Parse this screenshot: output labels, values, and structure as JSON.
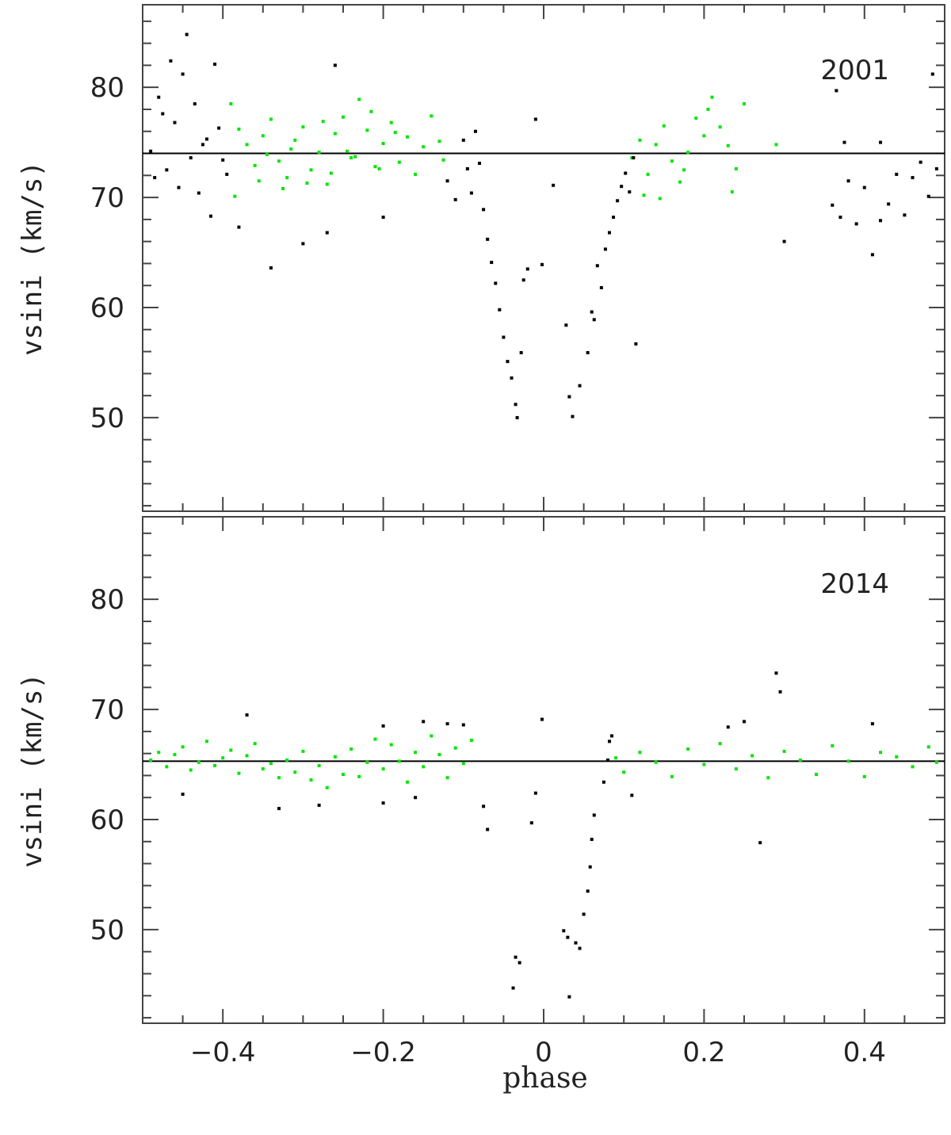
{
  "chart_data": [
    {
      "type": "scatter",
      "panel_label": "2001",
      "ylabel": "vsini  (km/s)",
      "xlim": [
        -0.5,
        0.5
      ],
      "ylim": [
        41.5,
        87.5
      ],
      "yticks": [
        50,
        60,
        70,
        80
      ],
      "reference_line": 74.0,
      "series": [
        {
          "color": "#00e600",
          "points": [
            [
              -0.39,
              78.5
            ],
            [
              -0.38,
              76.2
            ],
            [
              -0.37,
              74.8
            ],
            [
              -0.36,
              72.9
            ],
            [
              -0.35,
              75.6
            ],
            [
              -0.34,
              77.1
            ],
            [
              -0.33,
              73.3
            ],
            [
              -0.32,
              71.8
            ],
            [
              -0.31,
              75.2
            ],
            [
              -0.3,
              76.4
            ],
            [
              -0.29,
              72.5
            ],
            [
              -0.28,
              74.1
            ],
            [
              -0.27,
              71.2
            ],
            [
              -0.26,
              75.8
            ],
            [
              -0.25,
              77.3
            ],
            [
              -0.24,
              73.6
            ],
            [
              -0.23,
              78.9
            ],
            [
              -0.22,
              76.1
            ],
            [
              -0.21,
              72.8
            ],
            [
              -0.2,
              74.9
            ],
            [
              -0.19,
              76.8
            ],
            [
              -0.18,
              73.2
            ],
            [
              -0.17,
              75.5
            ],
            [
              -0.16,
              72.1
            ],
            [
              -0.15,
              74.6
            ],
            [
              -0.14,
              77.4
            ],
            [
              -0.13,
              75.1
            ],
            [
              -0.125,
              73.4
            ],
            [
              -0.385,
              70.1
            ],
            [
              -0.355,
              71.5
            ],
            [
              -0.325,
              70.8
            ],
            [
              -0.295,
              71.3
            ],
            [
              -0.265,
              72.2
            ],
            [
              -0.235,
              73.7
            ],
            [
              -0.205,
              72.6
            ],
            [
              -0.345,
              73.9
            ],
            [
              -0.315,
              74.4
            ],
            [
              -0.275,
              76.9
            ],
            [
              -0.245,
              74.2
            ],
            [
              -0.215,
              77.8
            ],
            [
              -0.185,
              75.9
            ],
            [
              0.11,
              73.6
            ],
            [
              0.12,
              75.2
            ],
            [
              0.13,
              72.1
            ],
            [
              0.14,
              74.8
            ],
            [
              0.15,
              76.5
            ],
            [
              0.16,
              73.3
            ],
            [
              0.17,
              71.4
            ],
            [
              0.18,
              74.1
            ],
            [
              0.19,
              77.2
            ],
            [
              0.2,
              75.6
            ],
            [
              0.21,
              79.1
            ],
            [
              0.22,
              76.4
            ],
            [
              0.23,
              74.7
            ],
            [
              0.24,
              72.6
            ],
            [
              0.25,
              78.5
            ],
            [
              0.125,
              70.2
            ],
            [
              0.145,
              69.9
            ],
            [
              0.175,
              72.5
            ],
            [
              0.205,
              78.0
            ],
            [
              0.235,
              70.5
            ],
            [
              0.29,
              74.8
            ]
          ]
        },
        {
          "color": "#000000",
          "points": [
            [
              -0.49,
              74.2
            ],
            [
              -0.48,
              79.1
            ],
            [
              -0.47,
              72.5
            ],
            [
              -0.46,
              76.8
            ],
            [
              -0.45,
              81.2
            ],
            [
              -0.44,
              73.6
            ],
            [
              -0.43,
              70.4
            ],
            [
              -0.42,
              75.3
            ],
            [
              -0.41,
              82.1
            ],
            [
              -0.4,
              73.4
            ],
            [
              -0.485,
              71.8
            ],
            [
              -0.475,
              77.6
            ],
            [
              -0.465,
              82.4
            ],
            [
              -0.455,
              70.9
            ],
            [
              -0.445,
              84.8
            ],
            [
              -0.435,
              78.5
            ],
            [
              -0.425,
              74.8
            ],
            [
              -0.415,
              68.3
            ],
            [
              -0.405,
              76.3
            ],
            [
              -0.395,
              72.1
            ],
            [
              -0.38,
              67.3
            ],
            [
              -0.34,
              63.6
            ],
            [
              -0.3,
              65.8
            ],
            [
              -0.27,
              66.8
            ],
            [
              -0.26,
              82.0
            ],
            [
              -0.2,
              68.2
            ],
            [
              -0.12,
              71.5
            ],
            [
              -0.11,
              69.8
            ],
            [
              -0.1,
              75.2
            ],
            [
              -0.095,
              72.6
            ],
            [
              -0.09,
              70.4
            ],
            [
              -0.085,
              76.0
            ],
            [
              -0.08,
              73.1
            ],
            [
              -0.075,
              68.9
            ],
            [
              -0.07,
              66.2
            ],
            [
              -0.065,
              64.1
            ],
            [
              -0.06,
              62.2
            ],
            [
              -0.055,
              59.8
            ],
            [
              -0.05,
              57.3
            ],
            [
              -0.045,
              55.1
            ],
            [
              -0.04,
              53.6
            ],
            [
              -0.035,
              51.2
            ],
            [
              -0.033,
              50.0
            ],
            [
              -0.028,
              55.9
            ],
            [
              -0.025,
              62.5
            ],
            [
              -0.02,
              63.5
            ],
            [
              -0.01,
              77.1
            ],
            [
              -0.002,
              63.9
            ],
            [
              0.012,
              71.1
            ],
            [
              0.028,
              58.4
            ],
            [
              0.032,
              51.9
            ],
            [
              0.036,
              50.1
            ],
            [
              0.045,
              52.9
            ],
            [
              0.055,
              55.9
            ],
            [
              0.06,
              59.6
            ],
            [
              0.063,
              58.9
            ],
            [
              0.067,
              63.8
            ],
            [
              0.072,
              61.8
            ],
            [
              0.077,
              65.3
            ],
            [
              0.082,
              66.8
            ],
            [
              0.087,
              68.2
            ],
            [
              0.092,
              69.7
            ],
            [
              0.097,
              71.0
            ],
            [
              0.102,
              72.2
            ],
            [
              0.107,
              70.5
            ],
            [
              0.112,
              73.6
            ],
            [
              0.115,
              56.7
            ],
            [
              0.3,
              66.0
            ],
            [
              0.36,
              69.3
            ],
            [
              0.37,
              68.2
            ],
            [
              0.38,
              71.5
            ],
            [
              0.39,
              67.6
            ],
            [
              0.4,
              70.9
            ],
            [
              0.41,
              64.8
            ],
            [
              0.42,
              67.9
            ],
            [
              0.43,
              69.4
            ],
            [
              0.44,
              72.1
            ],
            [
              0.45,
              68.4
            ],
            [
              0.46,
              71.8
            ],
            [
              0.47,
              73.2
            ],
            [
              0.48,
              70.1
            ],
            [
              0.49,
              72.6
            ],
            [
              0.365,
              79.7
            ],
            [
              0.375,
              75.0
            ],
            [
              0.42,
              75.0
            ],
            [
              0.485,
              81.2
            ]
          ]
        }
      ]
    },
    {
      "type": "scatter",
      "panel_label": "2014",
      "ylabel": "vsini  (km/s)",
      "xlabel": "phase",
      "xlim": [
        -0.5,
        0.5
      ],
      "xticks": [
        -0.4,
        -0.2,
        0,
        0.2,
        0.4
      ],
      "xtick_labels": [
        "−0.4",
        "−0.2",
        "0",
        "0.2",
        "0.4"
      ],
      "ylim": [
        41.5,
        87.5
      ],
      "yticks": [
        50,
        60,
        70,
        80
      ],
      "reference_line": 65.3,
      "series": [
        {
          "color": "#00e600",
          "points": [
            [
              -0.49,
              65.4
            ],
            [
              -0.48,
              66.1
            ],
            [
              -0.47,
              64.8
            ],
            [
              -0.46,
              65.9
            ],
            [
              -0.45,
              66.6
            ],
            [
              -0.44,
              64.5
            ],
            [
              -0.43,
              65.2
            ],
            [
              -0.42,
              67.1
            ],
            [
              -0.41,
              64.9
            ],
            [
              -0.4,
              65.6
            ],
            [
              -0.39,
              66.3
            ],
            [
              -0.38,
              64.2
            ],
            [
              -0.37,
              65.8
            ],
            [
              -0.36,
              66.9
            ],
            [
              -0.35,
              64.6
            ],
            [
              -0.34,
              65.1
            ],
            [
              -0.33,
              63.8
            ],
            [
              -0.32,
              65.4
            ],
            [
              -0.31,
              64.3
            ],
            [
              -0.3,
              66.2
            ],
            [
              -0.29,
              63.6
            ],
            [
              -0.28,
              64.9
            ],
            [
              -0.27,
              62.9
            ],
            [
              -0.26,
              65.7
            ],
            [
              -0.25,
              64.1
            ],
            [
              -0.24,
              66.4
            ],
            [
              -0.23,
              63.9
            ],
            [
              -0.22,
              65.2
            ],
            [
              -0.21,
              67.3
            ],
            [
              -0.2,
              64.6
            ],
            [
              -0.19,
              66.8
            ],
            [
              -0.18,
              65.3
            ],
            [
              -0.17,
              63.4
            ],
            [
              -0.16,
              66.1
            ],
            [
              -0.15,
              64.8
            ],
            [
              -0.14,
              67.6
            ],
            [
              -0.13,
              65.9
            ],
            [
              -0.12,
              63.8
            ],
            [
              -0.11,
              66.5
            ],
            [
              -0.1,
              65.1
            ],
            [
              -0.09,
              67.2
            ],
            [
              0.09,
              65.6
            ],
            [
              0.1,
              64.3
            ],
            [
              0.12,
              66.1
            ],
            [
              0.14,
              65.2
            ],
            [
              0.16,
              63.9
            ],
            [
              0.18,
              66.4
            ],
            [
              0.2,
              65.0
            ],
            [
              0.22,
              66.9
            ],
            [
              0.24,
              64.6
            ],
            [
              0.26,
              65.8
            ],
            [
              0.28,
              63.8
            ],
            [
              0.3,
              66.2
            ],
            [
              0.32,
              65.4
            ],
            [
              0.34,
              64.1
            ],
            [
              0.36,
              66.7
            ],
            [
              0.38,
              65.3
            ],
            [
              0.4,
              63.9
            ],
            [
              0.42,
              66.1
            ],
            [
              0.44,
              65.7
            ],
            [
              0.46,
              64.8
            ],
            [
              0.48,
              66.6
            ],
            [
              0.49,
              65.2
            ]
          ]
        },
        {
          "color": "#000000",
          "points": [
            [
              -0.45,
              62.3
            ],
            [
              -0.37,
              69.5
            ],
            [
              -0.33,
              61.0
            ],
            [
              -0.28,
              61.3
            ],
            [
              -0.2,
              68.5
            ],
            [
              -0.2,
              61.5
            ],
            [
              -0.16,
              62.0
            ],
            [
              -0.15,
              68.9
            ],
            [
              -0.12,
              68.7
            ],
            [
              -0.1,
              68.6
            ],
            [
              -0.075,
              61.2
            ],
            [
              -0.07,
              59.1
            ],
            [
              -0.038,
              44.7
            ],
            [
              -0.035,
              47.5
            ],
            [
              -0.03,
              47.0
            ],
            [
              -0.015,
              59.7
            ],
            [
              -0.01,
              62.4
            ],
            [
              -0.002,
              69.1
            ],
            [
              0.025,
              49.9
            ],
            [
              0.03,
              49.3
            ],
            [
              0.032,
              43.9
            ],
            [
              0.04,
              48.8
            ],
            [
              0.045,
              48.3
            ],
            [
              0.05,
              51.4
            ],
            [
              0.055,
              53.5
            ],
            [
              0.058,
              55.7
            ],
            [
              0.06,
              58.2
            ],
            [
              0.063,
              60.4
            ],
            [
              0.075,
              63.4
            ],
            [
              0.08,
              65.4
            ],
            [
              0.082,
              67.1
            ],
            [
              0.085,
              67.6
            ],
            [
              0.11,
              62.2
            ],
            [
              0.23,
              68.4
            ],
            [
              0.25,
              68.9
            ],
            [
              0.27,
              57.9
            ],
            [
              0.29,
              73.3
            ],
            [
              0.295,
              71.6
            ],
            [
              0.41,
              68.7
            ]
          ]
        }
      ]
    }
  ]
}
